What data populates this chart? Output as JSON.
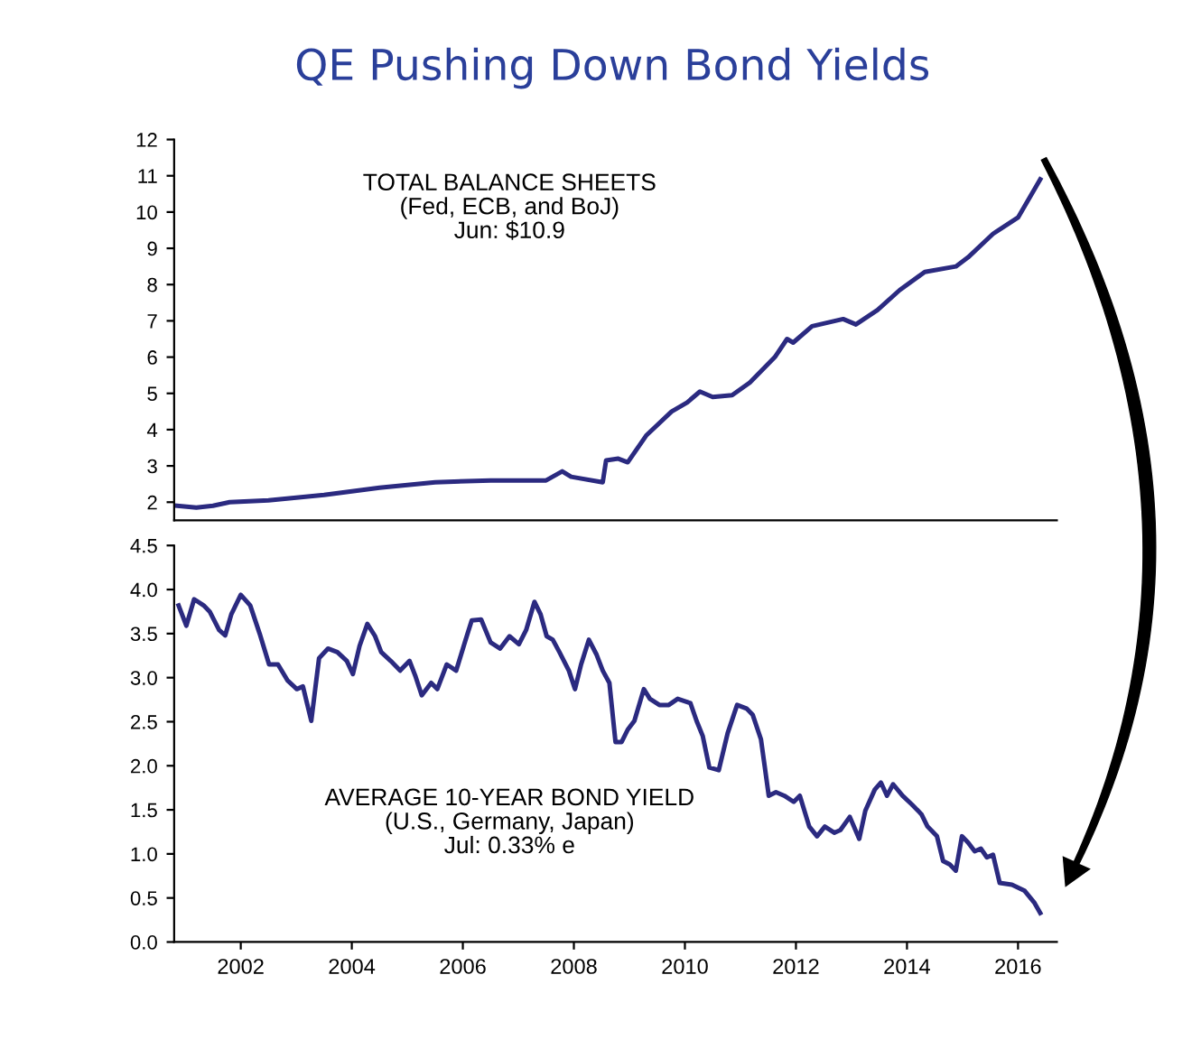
{
  "chart_data": [
    {
      "type": "line",
      "title": "QE Pushing Down Bond Yields",
      "annotations": [
        "TOTAL BALANCE SHEETS\n(Fed, ECB, and BoJ)\nJun: $10.9"
      ],
      "tick_labels": "y",
      "xlim": [
        2000.8,
        2016.7
      ],
      "ylim": [
        1.5,
        12
      ],
      "yticks": [
        2,
        3,
        4,
        5,
        6,
        7,
        8,
        9,
        10,
        11,
        12
      ],
      "grid": false,
      "legend": false,
      "series": [
        {
          "color": "#2b2a80",
          "x": [
            2000.85,
            2001.2,
            2001.5,
            2001.8,
            2002.5,
            2003.5,
            2004.5,
            2005.5,
            2006.5,
            2007.5,
            2007.79,
            2007.95,
            2008.52,
            2008.58,
            2008.8,
            2008.97,
            2009.31,
            2009.76,
            2010.04,
            2010.27,
            2010.5,
            2010.85,
            2011.17,
            2011.62,
            2011.84,
            2011.95,
            2012.29,
            2012.85,
            2013.08,
            2013.47,
            2013.87,
            2014.32,
            2014.88,
            2015.1,
            2015.55,
            2016.0,
            2016.4
          ],
          "values": [
            1.9,
            1.85,
            1.9,
            2.0,
            2.05,
            2.2,
            2.4,
            2.55,
            2.6,
            2.6,
            2.85,
            2.7,
            2.55,
            3.15,
            3.2,
            3.1,
            3.85,
            4.5,
            4.75,
            5.05,
            4.9,
            4.95,
            5.3,
            6.0,
            6.5,
            6.4,
            6.85,
            7.05,
            6.9,
            7.3,
            7.85,
            8.35,
            8.5,
            8.75,
            9.4,
            9.85,
            10.9
          ]
        }
      ]
    },
    {
      "type": "line",
      "annotations": [
        "AVERAGE 10-YEAR BOND YIELD\n(U.S., Germany, Japan)\nJul: 0.33% e"
      ],
      "xlim": [
        2000.8,
        2016.7
      ],
      "xticks": [
        2002,
        2004,
        2006,
        2008,
        2010,
        2012,
        2014,
        2016
      ],
      "ylim": [
        0,
        4.5
      ],
      "yticks": [
        {
          "value": 0,
          "label": "0.0"
        },
        {
          "value": 0.5,
          "label": "0.5"
        },
        {
          "value": 1,
          "label": "1.0"
        },
        {
          "value": 1.5,
          "label": "1.5"
        },
        {
          "value": 2,
          "label": "2.0"
        },
        {
          "value": 2.5,
          "label": "2.5"
        },
        {
          "value": 3,
          "label": "3.0"
        },
        {
          "value": 3.5,
          "label": "3.5"
        },
        {
          "value": 4,
          "label": "4.0"
        },
        {
          "value": 4.5,
          "label": "4.5"
        }
      ],
      "grid": false,
      "legend": false,
      "series": [
        {
          "color": "#2b2a80",
          "x": [
            2000.88,
            2001.02,
            2001.16,
            2001.33,
            2001.44,
            2001.61,
            2001.72,
            2001.83,
            2002.0,
            2002.17,
            2002.34,
            2002.51,
            2002.67,
            2002.84,
            2003.01,
            2003.12,
            2003.27,
            2003.41,
            2003.57,
            2003.74,
            2003.91,
            2004.02,
            2004.14,
            2004.28,
            2004.42,
            2004.53,
            2004.7,
            2004.87,
            2005.04,
            2005.15,
            2005.26,
            2005.43,
            2005.54,
            2005.71,
            2005.88,
            2006.05,
            2006.16,
            2006.33,
            2006.5,
            2006.67,
            2006.84,
            2007.01,
            2007.14,
            2007.29,
            2007.4,
            2007.51,
            2007.62,
            2007.74,
            2007.91,
            2008.02,
            2008.13,
            2008.27,
            2008.41,
            2008.52,
            2008.64,
            2008.75,
            2008.86,
            2008.97,
            2009.09,
            2009.26,
            2009.37,
            2009.54,
            2009.71,
            2009.87,
            2010.1,
            2010.21,
            2010.32,
            2010.44,
            2010.61,
            2010.77,
            2010.94,
            2011.11,
            2011.22,
            2011.37,
            2011.51,
            2011.64,
            2011.79,
            2011.96,
            2012.07,
            2012.24,
            2012.38,
            2012.52,
            2012.69,
            2012.8,
            2012.97,
            2013.14,
            2013.25,
            2013.42,
            2013.53,
            2013.64,
            2013.75,
            2013.92,
            2014.09,
            2014.26,
            2014.37,
            2014.54,
            2014.65,
            2014.77,
            2014.88,
            2014.99,
            2015.1,
            2015.22,
            2015.33,
            2015.44,
            2015.55,
            2015.67,
            2015.89,
            2016.12,
            2016.29,
            2016.4
          ],
          "values": [
            3.82,
            3.59,
            3.89,
            3.82,
            3.75,
            3.54,
            3.48,
            3.72,
            3.94,
            3.82,
            3.5,
            3.15,
            3.15,
            2.97,
            2.87,
            2.9,
            2.51,
            3.22,
            3.33,
            3.29,
            3.19,
            3.04,
            3.36,
            3.61,
            3.47,
            3.29,
            3.19,
            3.08,
            3.19,
            3.01,
            2.8,
            2.94,
            2.87,
            3.15,
            3.08,
            3.43,
            3.65,
            3.66,
            3.4,
            3.33,
            3.47,
            3.38,
            3.54,
            3.86,
            3.72,
            3.47,
            3.43,
            3.29,
            3.08,
            2.87,
            3.15,
            3.43,
            3.26,
            3.08,
            2.94,
            2.27,
            2.27,
            2.41,
            2.51,
            2.87,
            2.76,
            2.69,
            2.69,
            2.76,
            2.71,
            2.51,
            2.34,
            1.98,
            1.95,
            2.37,
            2.69,
            2.65,
            2.58,
            2.3,
            1.66,
            1.7,
            1.66,
            1.59,
            1.66,
            1.31,
            1.2,
            1.31,
            1.24,
            1.27,
            1.42,
            1.17,
            1.49,
            1.73,
            1.81,
            1.66,
            1.79,
            1.66,
            1.56,
            1.45,
            1.31,
            1.2,
            0.92,
            0.88,
            0.81,
            1.2,
            1.13,
            1.03,
            1.06,
            0.96,
            0.99,
            0.67,
            0.65,
            0.58,
            0.45,
            0.33
          ]
        }
      ]
    }
  ]
}
